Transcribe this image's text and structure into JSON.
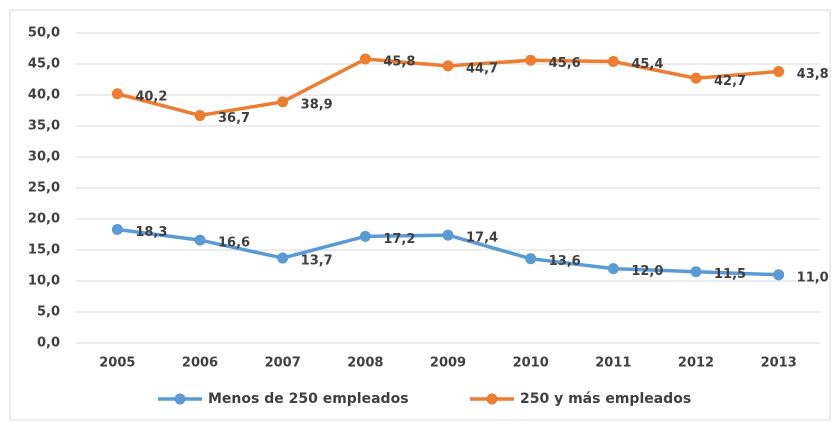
{
  "chart_data": {
    "type": "line",
    "categories": [
      "2005",
      "2006",
      "2007",
      "2008",
      "2009",
      "2010",
      "2011",
      "2012",
      "2013"
    ],
    "series": [
      {
        "name": "Menos de 250 empleados",
        "color": "#5b9bd5",
        "values": [
          18.3,
          16.6,
          13.7,
          17.2,
          17.4,
          13.6,
          12.0,
          11.5,
          11.0
        ],
        "value_labels": [
          "18,3",
          "16,6",
          "13,7",
          "17,2",
          "17,4",
          "13,6",
          "12,0",
          "11,5",
          "11,0"
        ]
      },
      {
        "name": "250 y más empleados",
        "color": "#ed7d31",
        "values": [
          40.2,
          36.7,
          38.9,
          45.8,
          44.7,
          45.6,
          45.4,
          42.7,
          43.8
        ],
        "value_labels": [
          "40,2",
          "36,7",
          "38,9",
          "45,8",
          "44,7",
          "45,6",
          "45,4",
          "42,7",
          "43,8"
        ]
      }
    ],
    "ylim": [
      0,
      50
    ],
    "yticks": [
      {
        "value": 0,
        "label": "0,0"
      },
      {
        "value": 5,
        "label": "5,0"
      },
      {
        "value": 10,
        "label": "10,0"
      },
      {
        "value": 15,
        "label": "15,0"
      },
      {
        "value": 20,
        "label": "20,0"
      },
      {
        "value": 25,
        "label": "25,0"
      },
      {
        "value": 30,
        "label": "30,0"
      },
      {
        "value": 35,
        "label": "35,0"
      },
      {
        "value": 40,
        "label": "40,0"
      },
      {
        "value": 45,
        "label": "45,0"
      },
      {
        "value": 50,
        "label": "50,0"
      }
    ],
    "grid": true,
    "legend": "bottom"
  }
}
